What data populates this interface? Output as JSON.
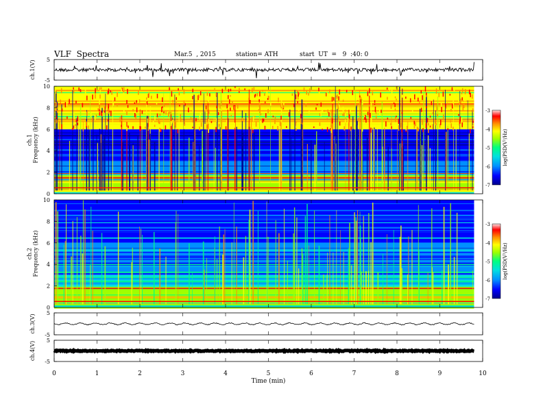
{
  "header": {
    "title": "VLF  Spectra",
    "date": "Mar.5  , 2015",
    "station": "station= ATH",
    "start": "start  UT  =   9  :40: 0"
  },
  "chart_data": [
    {
      "type": "line",
      "name": "ch1-waveform",
      "ylabel": "ch.1(V)",
      "yticks": [
        "5",
        "-5"
      ],
      "ylim": [
        -5,
        5
      ],
      "description_level": "approximately 0 V with frequent spikes",
      "xlim": [
        0,
        10
      ]
    },
    {
      "type": "heatmap",
      "name": "ch1-spectrogram",
      "ylabel": "ch.1\nFrequency  (kHz)",
      "yticks": [
        "0",
        "2",
        "4",
        "6",
        "8",
        "10"
      ],
      "ylim": [
        0,
        10
      ],
      "xlim": [
        0,
        9.8
      ],
      "colorbar": {
        "label": "log(PSD(V²/Hz)",
        "ticks": [
          "-3",
          "-4",
          "-5",
          "-6",
          "-7"
        ],
        "range": [
          -7,
          -3
        ]
      },
      "bands_khz": [
        {
          "from": 0,
          "to": 1.8,
          "level": "mixed -4 to -6, striped"
        },
        {
          "from": 1.8,
          "to": 3.0,
          "level": "about -6"
        },
        {
          "from": 3.0,
          "to": 6.0,
          "level": "about -6.8 (dark)"
        },
        {
          "from": 6.0,
          "to": 10.0,
          "level": "about -4.5 to -3.5 (green to red)"
        }
      ]
    },
    {
      "type": "heatmap",
      "name": "ch2-spectrogram",
      "ylabel": "ch.2\nFrequency  (kHz)",
      "yticks": [
        "0",
        "2",
        "4",
        "6",
        "8",
        "10"
      ],
      "ylim": [
        0,
        10
      ],
      "xlim": [
        0,
        9.8
      ],
      "colorbar": {
        "label": "log(PSD(V²/Hz)",
        "ticks": [
          "-3",
          "-4",
          "-5",
          "-6",
          "-7"
        ],
        "range": [
          -7,
          -3
        ]
      },
      "bands_khz": [
        {
          "from": 0,
          "to": 2.0,
          "level": "about -4.5 to -5 (green/orange)"
        },
        {
          "from": 2.0,
          "to": 3.0,
          "level": "about -5.5"
        },
        {
          "from": 3.0,
          "to": 6.0,
          "level": "about -6.3"
        },
        {
          "from": 6.0,
          "to": 10.0,
          "level": "about -6.6 with green spikes"
        }
      ]
    },
    {
      "type": "line",
      "name": "ch3-waveform",
      "ylabel": "ch.3(V)",
      "yticks": [
        "5",
        "-5"
      ],
      "ylim": [
        -5,
        5
      ],
      "description_level": "approximately 0 V, small ripple",
      "xlim": [
        0,
        10
      ]
    },
    {
      "type": "line",
      "name": "ch4-waveform",
      "ylabel": "ch.4(V)",
      "yticks": [
        "5",
        "-5"
      ],
      "ylim": [
        -5,
        5
      ],
      "description_level": "approximately 0 V, thick constant band",
      "xlim": [
        0,
        10
      ]
    }
  ],
  "x_axis": {
    "label": "Time  (min)",
    "ticks": [
      "0",
      "1",
      "2",
      "3",
      "4",
      "5",
      "6",
      "7",
      "8",
      "9",
      "10"
    ],
    "range": [
      0,
      10
    ]
  },
  "colors": {
    "colormap": [
      "#00008c",
      "#0000ff",
      "#0090ff",
      "#00e0e0",
      "#00ff80",
      "#a0ff00",
      "#ffff00",
      "#ff9000",
      "#ff0000",
      "#ffffff"
    ]
  }
}
